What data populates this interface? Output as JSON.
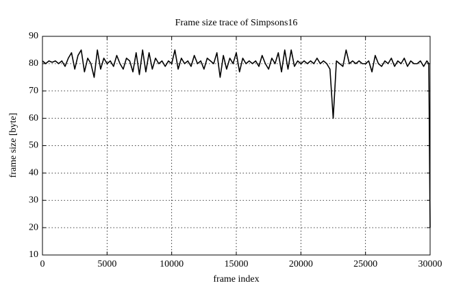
{
  "chart_data": {
    "type": "line",
    "title": "Frame size trace of Simpsons16",
    "xlabel": "frame index",
    "ylabel": "frame size [byte]",
    "color": "#000000",
    "grid": true,
    "xlim": [
      0,
      30000
    ],
    "ylim": [
      10,
      90
    ],
    "xticks": [
      0,
      5000,
      10000,
      15000,
      20000,
      25000,
      30000
    ],
    "yticks": [
      10,
      20,
      30,
      40,
      50,
      60,
      70,
      80,
      90
    ],
    "x": [
      0,
      250,
      500,
      750,
      1000,
      1250,
      1500,
      1750,
      2000,
      2250,
      2500,
      2750,
      3000,
      3250,
      3500,
      3750,
      4000,
      4250,
      4500,
      4750,
      5000,
      5250,
      5500,
      5750,
      6000,
      6250,
      6500,
      6750,
      7000,
      7250,
      7500,
      7750,
      8000,
      8250,
      8500,
      8750,
      9000,
      9250,
      9500,
      9750,
      10000,
      10250,
      10500,
      10750,
      11000,
      11250,
      11500,
      11750,
      12000,
      12250,
      12500,
      12750,
      13000,
      13250,
      13500,
      13750,
      14000,
      14250,
      14500,
      14750,
      15000,
      15250,
      15500,
      15750,
      16000,
      16250,
      16500,
      16750,
      17000,
      17250,
      17500,
      17750,
      18000,
      18250,
      18500,
      18750,
      19000,
      19250,
      19500,
      19750,
      20000,
      20250,
      20500,
      20750,
      21000,
      21250,
      21500,
      21750,
      22000,
      22250,
      22500,
      22750,
      23000,
      23250,
      23500,
      23750,
      24000,
      24250,
      24500,
      24750,
      25000,
      25250,
      25500,
      25750,
      26000,
      26250,
      26500,
      26750,
      27000,
      27250,
      27500,
      27750,
      28000,
      28250,
      28500,
      28750,
      29000,
      29250,
      29500,
      29750,
      29900,
      30000
    ],
    "values": [
      81,
      80,
      81,
      80.5,
      81,
      80,
      81,
      79,
      82,
      84,
      78,
      83,
      85,
      77,
      82,
      80,
      75,
      85,
      78,
      82,
      80,
      81,
      79,
      83,
      80,
      78,
      82,
      81,
      77,
      84,
      76,
      85,
      77,
      84,
      78,
      82,
      80,
      81,
      79,
      81,
      80,
      85,
      78,
      82,
      80,
      81,
      79,
      83,
      80,
      81,
      78,
      82,
      81,
      80,
      84,
      75,
      83,
      78,
      82,
      80,
      84,
      77,
      82,
      80,
      81,
      80,
      81,
      79,
      83,
      80,
      78,
      82,
      80,
      84,
      77,
      85,
      78,
      85,
      79,
      81,
      80,
      81,
      80,
      81,
      80,
      82,
      80,
      81,
      80,
      78,
      60,
      81,
      80,
      79,
      85,
      80,
      81,
      80,
      81,
      80,
      80,
      81,
      77,
      83,
      80,
      79,
      81,
      80,
      82,
      79,
      81,
      80,
      82,
      79,
      81,
      80,
      80,
      81,
      79,
      81,
      80,
      20
    ]
  }
}
